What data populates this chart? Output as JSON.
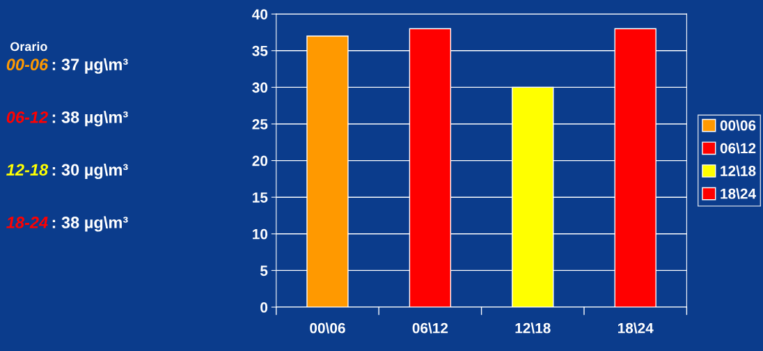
{
  "chart_data": {
    "type": "bar",
    "categories": [
      "00\\06",
      "06\\12",
      "12\\18",
      "18\\24"
    ],
    "series": [
      {
        "name": "00\\06",
        "color": "#ff9900",
        "values": [
          37,
          null,
          null,
          null
        ]
      },
      {
        "name": "06\\12",
        "color": "#ff0000",
        "values": [
          null,
          38,
          null,
          null
        ]
      },
      {
        "name": "12\\18",
        "color": "#ffff00",
        "values": [
          null,
          null,
          30,
          null
        ]
      },
      {
        "name": "18\\24",
        "color": "#ff0000",
        "values": [
          null,
          null,
          null,
          38
        ]
      }
    ],
    "ylim": [
      0,
      40
    ],
    "yticks": [
      0,
      5,
      10,
      15,
      20,
      25,
      30,
      35,
      40
    ],
    "grid": "y",
    "legend": "right",
    "annotations": [
      "Orario",
      "00-06 : 37 µg\\m³",
      "06-12 : 38 µg\\m³",
      "12-18 : 30 µg\\m³",
      "18-24 : 38 µg\\m³"
    ]
  }
}
